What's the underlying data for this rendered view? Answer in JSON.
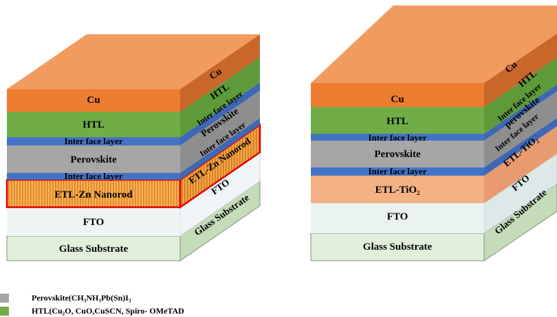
{
  "left_stack": {
    "front": {
      "cu": "Cu",
      "htl": "HTL",
      "interface_top": "Inter face layer",
      "perovskite": "Perovskite",
      "interface_bottom": "Inter face layer",
      "etl": "ETL-Zn Nanorod",
      "fto": "FTO",
      "glass": "Glass Substrate"
    },
    "side": {
      "cu": "Cu",
      "htl": "HTL",
      "interface_top": "Inter face layer",
      "perovskite": "Perovskite",
      "interface_bottom": "Inter face layer",
      "etl": "ETL-Zn Nanorod",
      "fto": "FTO",
      "glass": "Glass Substrate"
    }
  },
  "right_stack": {
    "front": {
      "cu": "Cu",
      "htl": "HTL",
      "interface_top": "Inter face layer",
      "perovskite": "Perovskite",
      "interface_bottom": "Inter face layer",
      "etl": "ETL-TiO₂",
      "fto": "FTO",
      "glass": "Glass Substrate"
    },
    "side": {
      "cu": "Cu",
      "htl": "HTL",
      "interface_top": "Inter face layer",
      "perovskite": "perovskite",
      "interface_bottom": "Inter face layer",
      "etl": "ETL-TiO₂",
      "fto": "FTO",
      "glass": "Glass Substrate"
    }
  },
  "legend": [
    {
      "color": "#a6a6a6",
      "text": "Perovskite(CH₃NH₃Pb(Sn)I₃"
    },
    {
      "color": "#70ad47",
      "text": "HTL(Cu₂O, CuO,CuSCN, Spiro- OMeTAD"
    }
  ],
  "colors": {
    "cu": "#ed7d31",
    "htl": "#70ad47",
    "interface": "#4472c4",
    "perovskite": "#a6a6a6",
    "etl_zn": "#f4a340",
    "etl_tio2": "#f4b183",
    "fto": "#e9f1f1",
    "glass": "#e2efda"
  }
}
